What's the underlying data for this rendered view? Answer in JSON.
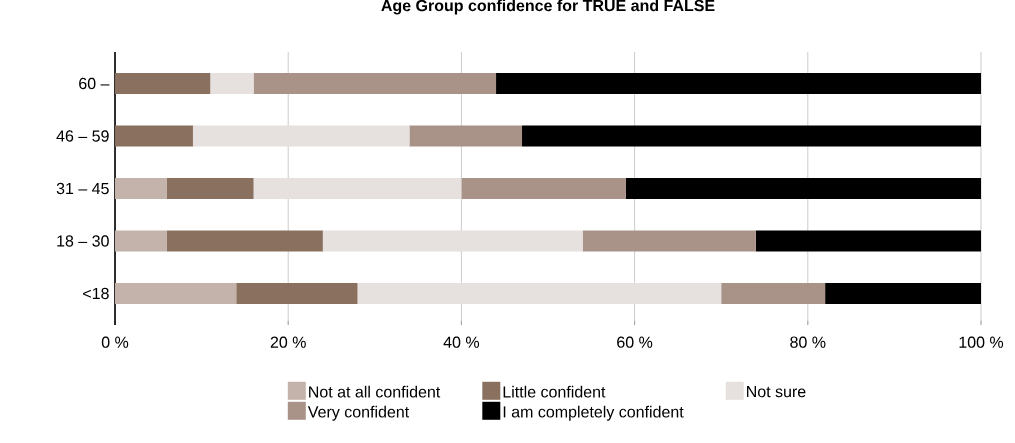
{
  "chart_data": {
    "type": "bar",
    "orientation": "horizontal",
    "stacked": true,
    "title": "Age Group confidence for TRUE and FALSE",
    "categories": [
      "60 –",
      "46 – 59",
      "31 – 45",
      "18 – 30",
      "<18"
    ],
    "series": [
      {
        "name": "Not at all confident",
        "color": "#c4b3aa",
        "values": [
          0,
          0,
          6,
          6,
          14
        ]
      },
      {
        "name": "Little confident",
        "color": "#8a705f",
        "values": [
          11,
          9,
          10,
          18,
          14
        ]
      },
      {
        "name": "Not sure",
        "color": "#e6e1df",
        "values": [
          5,
          25,
          24,
          30,
          42
        ]
      },
      {
        "name": "Very confident",
        "color": "#a99389",
        "values": [
          28,
          13,
          19,
          20,
          12
        ]
      },
      {
        "name": "I am completely confident",
        "color": "#000000",
        "values": [
          56,
          53,
          41,
          26,
          18
        ]
      }
    ],
    "xlim": [
      0,
      100
    ],
    "xticks": [
      {
        "value": 0,
        "label": "0 %"
      },
      {
        "value": 20,
        "label": "20 %"
      },
      {
        "value": 40,
        "label": "40 %"
      },
      {
        "value": 60,
        "label": "60 %"
      },
      {
        "value": 80,
        "label": "80 %"
      },
      {
        "value": 100,
        "label": "100 %"
      }
    ],
    "grid": "x",
    "legend": "bottom"
  }
}
